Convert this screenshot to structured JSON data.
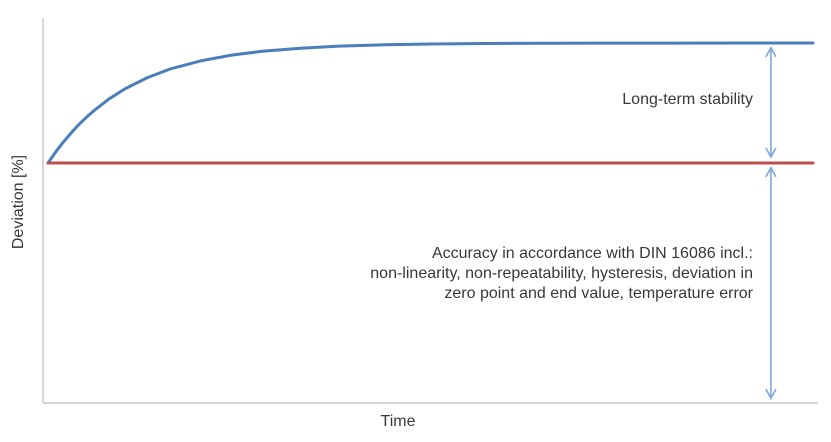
{
  "figure": {
    "background": "#ffffff",
    "text_color": "#383838",
    "axis_color": "#c6c6c6"
  },
  "chart_data": {
    "type": "line",
    "title": "",
    "xlabel": "Time",
    "ylabel": "Deviation [%]",
    "grid": false,
    "legend": false,
    "x_axis": {
      "ticks": [],
      "range": [
        0,
        1
      ]
    },
    "y_axis": {
      "ticks": [],
      "range": [
        -2.0,
        1.21
      ]
    },
    "arrow_color": "#7ea6d8",
    "series": [
      {
        "id": "long-term-drift-curve",
        "color": "#4a7ebb",
        "width": 3,
        "x": [
          0,
          0.01,
          0.02,
          0.03,
          0.04,
          0.05,
          0.06,
          0.08,
          0.1,
          0.13,
          0.16,
          0.2,
          0.24,
          0.28,
          0.33,
          0.38,
          0.44,
          0.5,
          0.57,
          0.65,
          0.73,
          0.82,
          0.91,
          1
        ],
        "y": [
          0,
          0.091,
          0.174,
          0.249,
          0.318,
          0.38,
          0.436,
          0.535,
          0.616,
          0.712,
          0.784,
          0.852,
          0.899,
          0.931,
          0.957,
          0.974,
          0.985,
          0.992,
          0.996,
          0.998,
          0.999,
          0.999,
          1,
          1
        ]
      },
      {
        "id": "accuracy-reference-line",
        "color": "#bf4f4c",
        "width": 3,
        "x": [
          0,
          1
        ],
        "y": [
          0,
          0
        ]
      }
    ],
    "annotations": [
      {
        "id": "long-term-stability",
        "label": "Long-term stability",
        "arrow": {
          "t": 0.945,
          "d_from": 0.96,
          "d_to": 0.05,
          "double_headed": true
        }
      },
      {
        "id": "accuracy-din-16086",
        "label": "Accuracy in accordance with DIN 16086 incl.:\nnon-linearity, non-repeatability, hysteresis, deviation in\nzero point and end value, temperature error",
        "arrow": {
          "t": 0.945,
          "d_from": -0.04,
          "d_to": -1.96,
          "double_headed": true
        }
      }
    ]
  }
}
